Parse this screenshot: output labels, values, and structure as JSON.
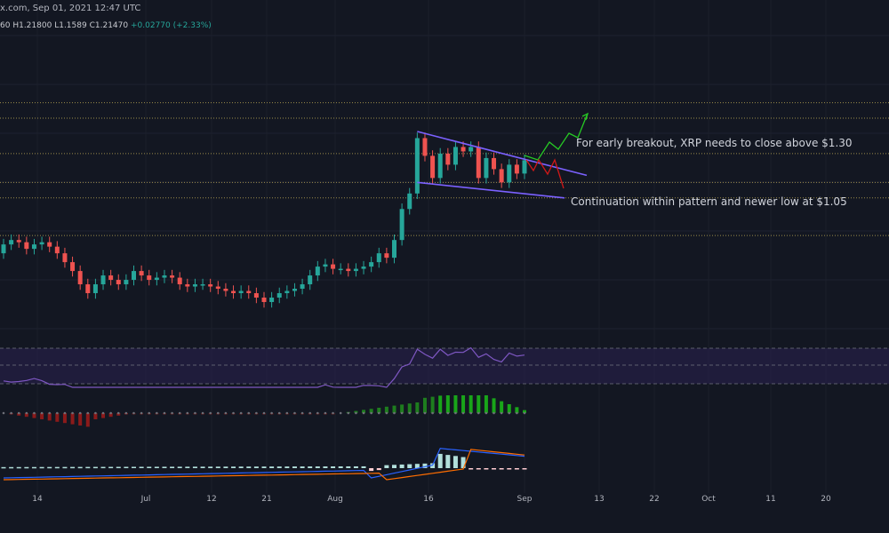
{
  "header": {
    "source_line": "x.com, Sep 01, 2021 12:47 UTC",
    "ohlc": {
      "o_fragment": "60",
      "high": "H1.21800",
      "low": "L1.1589",
      "close": "C1.21470",
      "change": "+0.02770 (+2.33%)"
    }
  },
  "annotations": {
    "breakout": "For early breakout, XRP needs to close above $1.30",
    "continuation": "Continuation within pattern and newer low at $1.05"
  },
  "colors": {
    "background": "#131722",
    "up_candle": "#26a69a",
    "down_candle": "#ef5350",
    "pattern_lines": "#7b61ff",
    "level_lines": "#c9b458",
    "rsi_line": "#7e57c2",
    "bullish_projection": "#26c924",
    "bearish_projection": "#d01818"
  },
  "chart_data": {
    "type": "candlestick",
    "x_axis_ticks": [
      "14",
      "Jul",
      "12",
      "21",
      "Aug",
      "16",
      "Sep",
      "13",
      "22",
      "Oct",
      "11",
      "20"
    ],
    "candles": [
      [
        0.8,
        0.84
      ],
      [
        0.84,
        0.86
      ],
      [
        0.86,
        0.85
      ],
      [
        0.85,
        0.82
      ],
      [
        0.82,
        0.84
      ],
      [
        0.84,
        0.85
      ],
      [
        0.85,
        0.83
      ],
      [
        0.83,
        0.8
      ],
      [
        0.8,
        0.76
      ],
      [
        0.76,
        0.72
      ],
      [
        0.72,
        0.66
      ],
      [
        0.66,
        0.62
      ],
      [
        0.62,
        0.66
      ],
      [
        0.66,
        0.7
      ],
      [
        0.7,
        0.68
      ],
      [
        0.68,
        0.66
      ],
      [
        0.66,
        0.68
      ],
      [
        0.68,
        0.72
      ],
      [
        0.72,
        0.7
      ],
      [
        0.7,
        0.68
      ],
      [
        0.68,
        0.69
      ],
      [
        0.69,
        0.7
      ],
      [
        0.7,
        0.69
      ],
      [
        0.69,
        0.66
      ],
      [
        0.66,
        0.65
      ],
      [
        0.65,
        0.66
      ],
      [
        0.66,
        0.66
      ],
      [
        0.66,
        0.65
      ],
      [
        0.65,
        0.64
      ],
      [
        0.64,
        0.63
      ],
      [
        0.63,
        0.62
      ],
      [
        0.62,
        0.63
      ],
      [
        0.63,
        0.62
      ],
      [
        0.62,
        0.6
      ],
      [
        0.6,
        0.58
      ],
      [
        0.58,
        0.6
      ],
      [
        0.6,
        0.62
      ],
      [
        0.62,
        0.63
      ],
      [
        0.63,
        0.64
      ],
      [
        0.64,
        0.66
      ],
      [
        0.66,
        0.7
      ],
      [
        0.7,
        0.74
      ],
      [
        0.74,
        0.75
      ],
      [
        0.75,
        0.73
      ],
      [
        0.73,
        0.73
      ],
      [
        0.73,
        0.72
      ],
      [
        0.72,
        0.73
      ],
      [
        0.73,
        0.74
      ],
      [
        0.74,
        0.76
      ],
      [
        0.76,
        0.8
      ],
      [
        0.8,
        0.78
      ],
      [
        0.78,
        0.86
      ],
      [
        0.86,
        1.0
      ],
      [
        1.0,
        1.07
      ],
      [
        1.07,
        1.32
      ],
      [
        1.32,
        1.24
      ],
      [
        1.24,
        1.14
      ],
      [
        1.14,
        1.25
      ],
      [
        1.25,
        1.2
      ],
      [
        1.2,
        1.28
      ],
      [
        1.28,
        1.26
      ],
      [
        1.26,
        1.28
      ],
      [
        1.28,
        1.14
      ],
      [
        1.14,
        1.23
      ],
      [
        1.23,
        1.18
      ],
      [
        1.18,
        1.12
      ],
      [
        1.12,
        1.2
      ],
      [
        1.2,
        1.16
      ],
      [
        1.16,
        1.22
      ]
    ],
    "horizontal_levels": [
      1.48,
      1.41,
      1.25,
      1.12,
      1.05,
      0.88
    ],
    "descending_resistance": [
      [
        1.35,
        1.18
      ]
    ],
    "descending_support": [
      [
        1.12,
        1.05
      ]
    ]
  }
}
